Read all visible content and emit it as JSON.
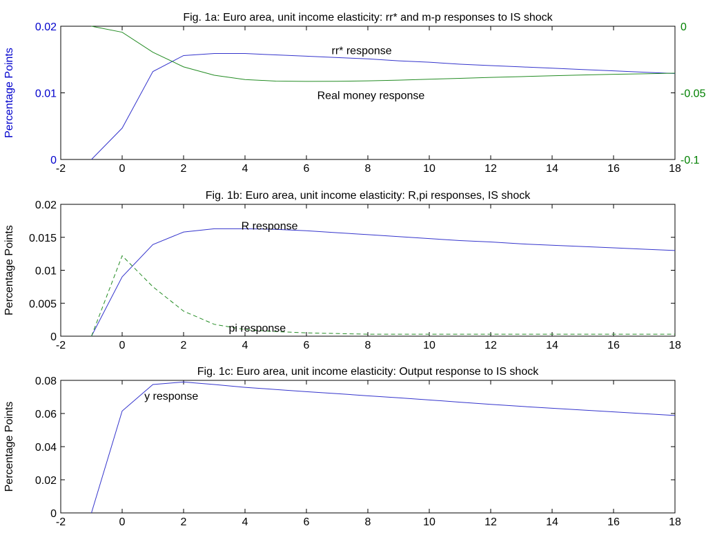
{
  "chart_data": [
    {
      "type": "line",
      "title": "Fig. 1a: Euro area, unit income elasticity: rr* and m-p responses to IS shock",
      "xlabel": "",
      "ylabel": "Percentage Points",
      "y2label": "",
      "xlim": [
        -2,
        18
      ],
      "ylim": [
        0,
        0.02
      ],
      "y2lim": [
        -0.1,
        0
      ],
      "xticks": [
        "-2",
        "0",
        "2",
        "4",
        "6",
        "8",
        "10",
        "12",
        "14",
        "16",
        "18"
      ],
      "yticks": [
        "0",
        "0.01",
        "0.02"
      ],
      "y2ticks": [
        "-0.1",
        "-0.05",
        "0"
      ],
      "colors": {
        "left_axis": "#0000cc",
        "right_axis": "#008000",
        "series_1": "#3333cc",
        "series_2": "#228b22"
      },
      "x": [
        -1,
        0,
        1,
        2,
        3,
        4,
        5,
        6,
        7,
        8,
        9,
        10,
        11,
        12,
        13,
        14,
        15,
        16,
        17,
        18
      ],
      "series": [
        {
          "name": "rr* response",
          "axis": "left",
          "style": "solid",
          "values": [
            0,
            0.0047,
            0.0132,
            0.0156,
            0.0159,
            0.0159,
            0.0157,
            0.0155,
            0.0153,
            0.0151,
            0.0148,
            0.0146,
            0.0143,
            0.0141,
            0.0139,
            0.0137,
            0.0135,
            0.0133,
            0.0131,
            0.0129
          ]
        },
        {
          "name": "Real money response",
          "axis": "right",
          "style": "solid",
          "values": [
            0,
            -0.0045,
            -0.0195,
            -0.0305,
            -0.0368,
            -0.04,
            -0.0412,
            -0.0414,
            -0.0413,
            -0.041,
            -0.0405,
            -0.0398,
            -0.0391,
            -0.0384,
            -0.0378,
            -0.0372,
            -0.0366,
            -0.0361,
            -0.0357,
            -0.0352
          ]
        }
      ],
      "annotations": [
        {
          "text": "rr* response",
          "x": 7.8,
          "y": 0.0163
        },
        {
          "text": "Real money response",
          "x": 8.1,
          "y": 0.0096
        }
      ]
    },
    {
      "type": "line",
      "title": "Fig. 1b: Euro area, unit income elasticity: R,pi responses, IS shock",
      "xlabel": "",
      "ylabel": "Percentage Points",
      "xlim": [
        -2,
        18
      ],
      "ylim": [
        0,
        0.02
      ],
      "xticks": [
        "-2",
        "0",
        "2",
        "4",
        "6",
        "8",
        "10",
        "12",
        "14",
        "16",
        "18"
      ],
      "yticks": [
        "0",
        "0.005",
        "0.01",
        "0.015",
        "0.02"
      ],
      "colors": {
        "series_1": "#3333cc",
        "series_2": "#228b22"
      },
      "x": [
        -1,
        0,
        1,
        2,
        3,
        4,
        5,
        6,
        7,
        8,
        9,
        10,
        11,
        12,
        13,
        14,
        15,
        16,
        17,
        18
      ],
      "series": [
        {
          "name": "R response",
          "axis": "left",
          "style": "solid",
          "values": [
            0,
            0.009,
            0.0139,
            0.0158,
            0.0163,
            0.0163,
            0.0162,
            0.016,
            0.0157,
            0.0154,
            0.0151,
            0.0148,
            0.0145,
            0.0143,
            0.014,
            0.0138,
            0.0136,
            0.0134,
            0.0132,
            0.013
          ]
        },
        {
          "name": "pi response",
          "axis": "left",
          "style": "dashed",
          "values": [
            0,
            0.0122,
            0.0075,
            0.0038,
            0.0018,
            0.001,
            0.0007,
            0.0005,
            0.0004,
            0.0003,
            0.0003,
            0.0003,
            0.0003,
            0.0003,
            0.0003,
            0.0003,
            0.0003,
            0.0003,
            0.0003,
            0.0003
          ]
        }
      ],
      "annotations": [
        {
          "text": "R response",
          "x": 4.8,
          "y": 0.0167
        },
        {
          "text": "pi response",
          "x": 4.4,
          "y": 0.0012
        }
      ]
    },
    {
      "type": "line",
      "title": "Fig. 1c: Euro area, unit income elasticity: Output response to IS shock",
      "xlabel": "",
      "ylabel": "Percentage Points",
      "xlim": [
        -2,
        18
      ],
      "ylim": [
        0,
        0.08
      ],
      "xticks": [
        "-2",
        "0",
        "2",
        "4",
        "6",
        "8",
        "10",
        "12",
        "14",
        "16",
        "18"
      ],
      "yticks": [
        "0",
        "0.02",
        "0.04",
        "0.06",
        "0.08"
      ],
      "colors": {
        "series_1": "#3333cc"
      },
      "x": [
        -1,
        0,
        1,
        2,
        3,
        4,
        5,
        6,
        7,
        8,
        9,
        10,
        11,
        12,
        13,
        14,
        15,
        16,
        17,
        18
      ],
      "series": [
        {
          "name": "y response",
          "axis": "left",
          "style": "solid",
          "values": [
            0,
            0.0615,
            0.0775,
            0.079,
            0.0775,
            0.0758,
            0.0745,
            0.0732,
            0.072,
            0.0707,
            0.0695,
            0.0682,
            0.0668,
            0.0655,
            0.0643,
            0.0632,
            0.0621,
            0.061,
            0.0599,
            0.0588
          ]
        }
      ],
      "annotations": [
        {
          "text": "y response",
          "x": 1.6,
          "y": 0.0705
        }
      ]
    }
  ]
}
